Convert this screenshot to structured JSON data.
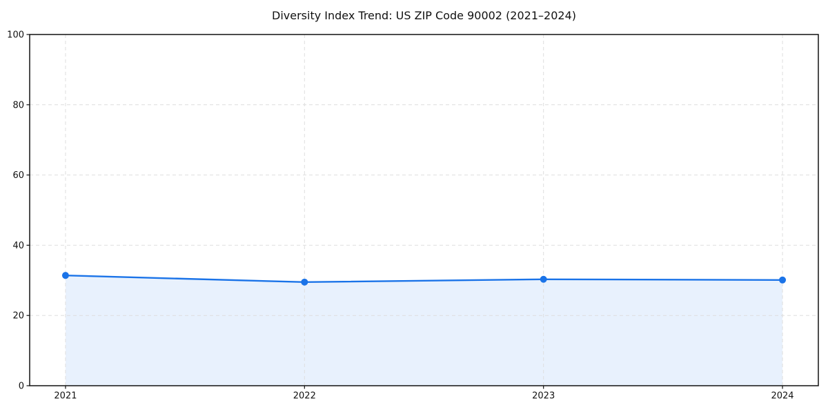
{
  "chart_data": {
    "type": "area",
    "title": "Diversity Index Trend: US ZIP Code 90002 (2021–2024)",
    "categories": [
      "2021",
      "2022",
      "2023",
      "2024"
    ],
    "x": [
      2021,
      2022,
      2023,
      2024
    ],
    "series": [
      {
        "name": "Diversity Index",
        "values": [
          31.4,
          29.5,
          30.3,
          30.1
        ]
      }
    ],
    "xlabel": "",
    "ylabel": "",
    "xlim": [
      2020.85,
      2024.15
    ],
    "ylim": [
      0,
      100
    ],
    "xticks": [
      2021,
      2022,
      2023,
      2024
    ],
    "yticks": [
      0,
      20,
      40,
      60,
      80,
      100
    ],
    "grid": {
      "visible": true,
      "style": "dashed",
      "axis": "both"
    },
    "legend": {
      "visible": false
    },
    "marker": "circle",
    "colors": {
      "line": "#1a73e8",
      "marker": "#1a73e8",
      "area_fill": "#e8f1fd",
      "grid": "#dedede",
      "axis": "#111111",
      "text": "#111111",
      "background": "#ffffff"
    }
  }
}
